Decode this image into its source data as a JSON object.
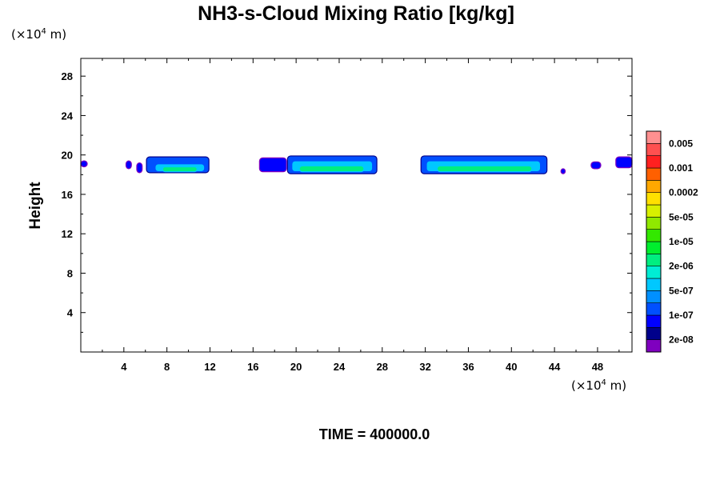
{
  "chart_data": {
    "type": "heatmap",
    "title": "NH3-s-Cloud Mixing Ratio [kg/kg]",
    "xlabel": "",
    "ylabel": "Height",
    "x_unit": {
      "prefix": "(×10",
      "exp": "4",
      "suffix": " m)"
    },
    "y_unit": {
      "prefix": "(×10",
      "exp": "4",
      "suffix": " m)"
    },
    "xlim": [
      0,
      51.2
    ],
    "ylim": [
      0,
      29.8
    ],
    "x_ticks": [
      4,
      8,
      12,
      16,
      20,
      24,
      28,
      32,
      36,
      40,
      44,
      48
    ],
    "y_ticks": [
      4,
      8,
      12,
      16,
      20,
      24,
      28
    ],
    "x_minor_step": 2,
    "y_minor_step": 2,
    "time_label": "TIME = 400000.0",
    "colorbar": {
      "colors": [
        "#7f00bf",
        "#00008b",
        "#0000ff",
        "#0050ff",
        "#0090ff",
        "#00c8ff",
        "#00ecd4",
        "#00ee80",
        "#00ee2e",
        "#33e800",
        "#90e800",
        "#d8f000",
        "#ffe000",
        "#ffa800",
        "#ff6000",
        "#ff2020",
        "#ff5050",
        "#ff9090"
      ],
      "labels": [
        "2e-08",
        "1e-07",
        "5e-07",
        "2e-06",
        "1e-05",
        "5e-05",
        "0.0002",
        "0.001",
        "0.005"
      ]
    },
    "cloud_bands": [
      {
        "x0": 0.0,
        "x1": 0.6,
        "y0": 18.8,
        "y1": 19.4,
        "level": 2
      },
      {
        "x0": 4.2,
        "x1": 4.7,
        "y0": 18.6,
        "y1": 19.4,
        "level": 2
      },
      {
        "x0": 5.2,
        "x1": 5.7,
        "y0": 18.2,
        "y1": 19.2,
        "level": 2
      },
      {
        "x0": 6.1,
        "x1": 11.9,
        "y0": 18.2,
        "y1": 19.8,
        "level": 3
      },
      {
        "x0": 6.9,
        "x1": 11.5,
        "y0": 18.3,
        "y1": 19.1,
        "level": 5
      },
      {
        "x0": 7.6,
        "x1": 10.8,
        "y0": 18.3,
        "y1": 18.8,
        "level": 7
      },
      {
        "x0": 16.6,
        "x1": 19.1,
        "y0": 18.3,
        "y1": 19.7,
        "level": 2
      },
      {
        "x0": 19.2,
        "x1": 27.5,
        "y0": 18.1,
        "y1": 19.9,
        "level": 3
      },
      {
        "x0": 19.6,
        "x1": 27.1,
        "y0": 18.3,
        "y1": 19.4,
        "level": 5
      },
      {
        "x0": 20.3,
        "x1": 26.3,
        "y0": 18.3,
        "y1": 18.9,
        "level": 7
      },
      {
        "x0": 31.6,
        "x1": 43.3,
        "y0": 18.1,
        "y1": 19.9,
        "level": 3
      },
      {
        "x0": 32.1,
        "x1": 42.7,
        "y0": 18.3,
        "y1": 19.4,
        "level": 5
      },
      {
        "x0": 33.1,
        "x1": 41.9,
        "y0": 18.3,
        "y1": 18.9,
        "level": 7
      },
      {
        "x0": 44.6,
        "x1": 45.0,
        "y0": 18.1,
        "y1": 18.6,
        "level": 2
      },
      {
        "x0": 47.4,
        "x1": 48.3,
        "y0": 18.6,
        "y1": 19.3,
        "level": 2
      },
      {
        "x0": 49.7,
        "x1": 51.2,
        "y0": 18.7,
        "y1": 19.8,
        "level": 2
      }
    ]
  }
}
